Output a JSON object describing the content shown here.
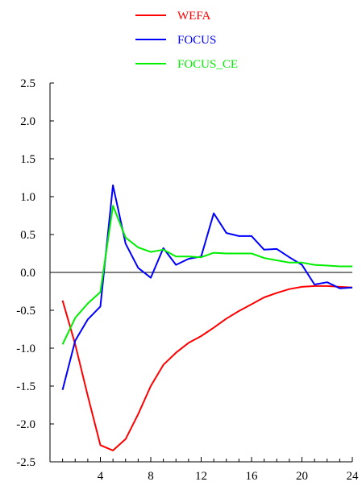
{
  "chart_data": {
    "type": "line",
    "title": "",
    "xlabel": "",
    "ylabel": "",
    "xlim": [
      0,
      24
    ],
    "ylim": [
      -2.5,
      2.5
    ],
    "xticks": [
      4,
      8,
      12,
      16,
      20,
      24
    ],
    "xtick_labels": [
      "4",
      "8",
      "12",
      "16",
      "20",
      "24"
    ],
    "yticks": [
      2.5,
      2.0,
      1.5,
      1.0,
      0.5,
      0.0,
      -0.5,
      -1.0,
      -1.5,
      -2.0,
      -2.5
    ],
    "ytick_labels": [
      "2.5",
      "2.0",
      "1.5",
      "1.0",
      "0.5",
      "0.0",
      "-0.5",
      "-1.0",
      "-1.5",
      "-2.0",
      "-2.5"
    ],
    "zero_line": true,
    "grid": false,
    "legend_position": "top-center",
    "x": [
      1,
      2,
      3,
      4,
      5,
      6,
      7,
      8,
      9,
      10,
      11,
      12,
      13,
      14,
      15,
      16,
      17,
      18,
      19,
      20,
      21,
      22,
      23,
      24
    ],
    "series": [
      {
        "name": "WEFA",
        "color": "#ff0000",
        "values": [
          -0.37,
          -0.95,
          -1.63,
          -2.28,
          -2.35,
          -2.2,
          -1.87,
          -1.5,
          -1.22,
          -1.06,
          -0.93,
          -0.84,
          -0.73,
          -0.61,
          -0.51,
          -0.42,
          -0.33,
          -0.27,
          -0.22,
          -0.19,
          -0.18,
          -0.18,
          -0.19,
          -0.2
        ]
      },
      {
        "name": "FOCUS",
        "color": "#0000ff",
        "values": [
          -1.55,
          -0.9,
          -0.62,
          -0.45,
          1.15,
          0.38,
          0.06,
          -0.07,
          0.32,
          0.1,
          0.18,
          0.21,
          0.78,
          0.52,
          0.48,
          0.48,
          0.3,
          0.31,
          0.2,
          0.1,
          -0.16,
          -0.13,
          -0.21,
          -0.2
        ]
      },
      {
        "name": "FOCUS_CE",
        "color": "#00ee00",
        "values": [
          -0.95,
          -0.6,
          -0.41,
          -0.26,
          0.88,
          0.46,
          0.33,
          0.27,
          0.3,
          0.21,
          0.21,
          0.2,
          0.26,
          0.25,
          0.25,
          0.25,
          0.19,
          0.16,
          0.13,
          0.13,
          0.1,
          0.09,
          0.08,
          0.08
        ]
      }
    ]
  }
}
